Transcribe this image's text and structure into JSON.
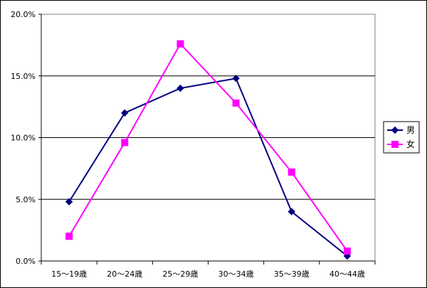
{
  "chart_data": {
    "type": "line",
    "categories": [
      "15〜19歳",
      "20〜24歳",
      "25〜29歳",
      "30〜34歳",
      "35〜39歳",
      "40〜44歳"
    ],
    "series": [
      {
        "name": "男",
        "values": [
          4.8,
          12.0,
          14.0,
          14.8,
          4.0,
          0.4
        ],
        "color": "#000080",
        "marker": "diamond"
      },
      {
        "name": "女",
        "values": [
          2.0,
          9.6,
          17.6,
          12.8,
          7.2,
          0.8
        ],
        "color": "#FF00FF",
        "marker": "square"
      }
    ],
    "ylim": [
      0,
      20
    ],
    "yticks": [
      "0.0%",
      "5.0%",
      "10.0%",
      "15.0%",
      "20.0%"
    ],
    "ytick_values": [
      0,
      5,
      10,
      15,
      20
    ],
    "grid": "horizontal",
    "legend_position": "right",
    "title": "",
    "xlabel": "",
    "ylabel": ""
  }
}
